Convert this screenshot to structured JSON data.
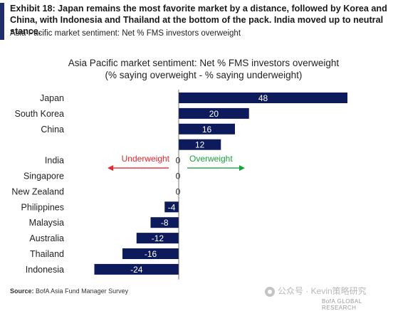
{
  "exhibit": {
    "title": "Exhibit 18: Japan remains the most favorite market by a distance, followed by Korea and China, with Indonesia and Thailand at the bottom of the pack. India moved up to neutral stance.",
    "subtitle": "Asia Pacific market sentiment: Net % FMS investors overweight"
  },
  "chart_data": {
    "type": "bar",
    "orientation": "horizontal",
    "title": "Asia Pacific market sentiment: Net % FMS investors overweight",
    "subtitle": "(% saying overweight - % saying underweight)",
    "categories": [
      "Japan",
      "South Korea",
      "China",
      "",
      "India",
      "Singapore",
      "New Zealand",
      "Philippines",
      "Malaysia",
      "Australia",
      "Thailand",
      "Indonesia"
    ],
    "values": [
      48,
      20,
      16,
      12,
      0,
      0,
      0,
      -4,
      -8,
      -12,
      -16,
      -24
    ],
    "xlim": [
      -24,
      48
    ],
    "grid": false,
    "bar_color": "#0d1a5c",
    "annotations": [
      {
        "text": "Underweight",
        "direction": "left",
        "color": "#e8262b"
      },
      {
        "text": "Overweight",
        "direction": "right",
        "color": "#1aa33a"
      }
    ]
  },
  "footer": {
    "source_label": "Source:",
    "source_text": "BofA Asia Fund Manager Survey"
  },
  "watermark": {
    "main": "公众号 · Kevin策略研究",
    "sub": "BofA GLOBAL RESEARCH"
  }
}
